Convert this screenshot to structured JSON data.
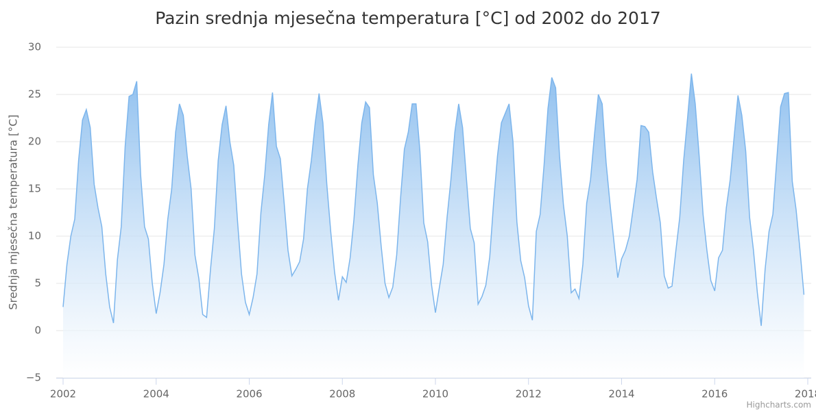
{
  "chart_data": {
    "type": "area",
    "title": "Pazin srednja mjesečna temperatura [°C] od 2002 do 2017",
    "y_label": "Srednja mjesečna temperatura [°C]",
    "credits": "Highcharts.com",
    "color": "#7cb5ec",
    "grid": true,
    "xlim": [
      2002,
      2018
    ],
    "xticks": [
      2002,
      2004,
      2006,
      2008,
      2010,
      2012,
      2014,
      2016,
      2018
    ],
    "ylim": [
      -5,
      30
    ],
    "yticks": [
      {
        "value": -5,
        "label": "−5"
      },
      0,
      5,
      10,
      15,
      20,
      25,
      30
    ],
    "x": [
      2002,
      2002.083,
      2002.167,
      2002.25,
      2002.333,
      2002.417,
      2002.5,
      2002.583,
      2002.667,
      2002.75,
      2002.833,
      2002.917,
      2003,
      2003.083,
      2003.167,
      2003.25,
      2003.333,
      2003.417,
      2003.5,
      2003.583,
      2003.667,
      2003.75,
      2003.833,
      2003.917,
      2004,
      2004.083,
      2004.167,
      2004.25,
      2004.333,
      2004.417,
      2004.5,
      2004.583,
      2004.667,
      2004.75,
      2004.833,
      2004.917,
      2005,
      2005.083,
      2005.167,
      2005.25,
      2005.333,
      2005.417,
      2005.5,
      2005.583,
      2005.667,
      2005.75,
      2005.833,
      2005.917,
      2006,
      2006.083,
      2006.167,
      2006.25,
      2006.333,
      2006.417,
      2006.5,
      2006.583,
      2006.667,
      2006.75,
      2006.833,
      2006.917,
      2007,
      2007.083,
      2007.167,
      2007.25,
      2007.333,
      2007.417,
      2007.5,
      2007.583,
      2007.667,
      2007.75,
      2007.833,
      2007.917,
      2008,
      2008.083,
      2008.167,
      2008.25,
      2008.333,
      2008.417,
      2008.5,
      2008.583,
      2008.667,
      2008.75,
      2008.833,
      2008.917,
      2009,
      2009.083,
      2009.167,
      2009.25,
      2009.333,
      2009.417,
      2009.5,
      2009.583,
      2009.667,
      2009.75,
      2009.833,
      2009.917,
      2010,
      2010.083,
      2010.167,
      2010.25,
      2010.333,
      2010.417,
      2010.5,
      2010.583,
      2010.667,
      2010.75,
      2010.833,
      2010.917,
      2011,
      2011.083,
      2011.167,
      2011.25,
      2011.333,
      2011.417,
      2011.5,
      2011.583,
      2011.667,
      2011.75,
      2011.833,
      2011.917,
      2012,
      2012.083,
      2012.167,
      2012.25,
      2012.333,
      2012.417,
      2012.5,
      2012.583,
      2012.667,
      2012.75,
      2012.833,
      2012.917,
      2013,
      2013.083,
      2013.167,
      2013.25,
      2013.333,
      2013.417,
      2013.5,
      2013.583,
      2013.667,
      2013.75,
      2013.833,
      2013.917,
      2014,
      2014.083,
      2014.167,
      2014.25,
      2014.333,
      2014.417,
      2014.5,
      2014.583,
      2014.667,
      2014.75,
      2014.833,
      2014.917,
      2015,
      2015.083,
      2015.167,
      2015.25,
      2015.333,
      2015.417,
      2015.5,
      2015.583,
      2015.667,
      2015.75,
      2015.833,
      2015.917,
      2016,
      2016.083,
      2016.167,
      2016.25,
      2016.333,
      2016.417,
      2016.5,
      2016.583,
      2016.667,
      2016.75,
      2016.833,
      2016.917,
      2017,
      2017.083,
      2017.167,
      2017.25,
      2017.333,
      2017.417,
      2017.5,
      2017.583,
      2017.667,
      2017.75,
      2017.833,
      2017.917
    ],
    "values": [
      2.5,
      7,
      10,
      11.8,
      18,
      22.3,
      23.4,
      21.5,
      15.5,
      13,
      11,
      6,
      2.5,
      0.8,
      7.5,
      11,
      19.5,
      24.8,
      25,
      26.4,
      16.5,
      11,
      9.7,
      5,
      1.8,
      4,
      7,
      11.8,
      15,
      21,
      24,
      22.8,
      18.5,
      15,
      8,
      5.5,
      1.7,
      1.4,
      6.5,
      10.8,
      18,
      21.8,
      23.8,
      20,
      17.5,
      11.5,
      6,
      3,
      1.7,
      3.5,
      6,
      12.5,
      16.5,
      21.8,
      25.2,
      19.5,
      18.2,
      13.5,
      8.5,
      5.8,
      6.5,
      7.3,
      9.7,
      15,
      18,
      22,
      25.1,
      22,
      15.5,
      10.5,
      6.2,
      3.2,
      5.7,
      5.1,
      7.7,
      11.8,
      17.5,
      22,
      24.2,
      23.6,
      16.5,
      13.5,
      9,
      5,
      3.5,
      4.6,
      8,
      14,
      19.2,
      21,
      24,
      24,
      19,
      11.4,
      9.4,
      4.8,
      1.9,
      4.5,
      7,
      12,
      16,
      21,
      24,
      21.5,
      16,
      10.8,
      9.3,
      2.8,
      3.6,
      4.8,
      7.8,
      13.5,
      18.5,
      22,
      23,
      24,
      20,
      11.5,
      7.4,
      5.6,
      2.6,
      1.1,
      10.5,
      12.3,
      17.5,
      23.5,
      26.8,
      25.7,
      18.5,
      13.3,
      10,
      4,
      4.4,
      3.4,
      7,
      13.5,
      16,
      20.7,
      25,
      24,
      17.8,
      13.5,
      9.5,
      5.6,
      7.6,
      8.5,
      10,
      13,
      16,
      21.7,
      21.6,
      21,
      16.8,
      14,
      11.4,
      5.8,
      4.5,
      4.7,
      8.5,
      12,
      18,
      22.5,
      27.2,
      24,
      18.5,
      12.3,
      8.5,
      5.3,
      4.2,
      7.7,
      8.5,
      13,
      16,
      20.5,
      24.9,
      22.8,
      19,
      12,
      8.5,
      4,
      0.5,
      6.5,
      10.5,
      12.3,
      18,
      23.7,
      25.1,
      25.2,
      15.8,
      12.8,
      8.5,
      3.8
    ]
  }
}
